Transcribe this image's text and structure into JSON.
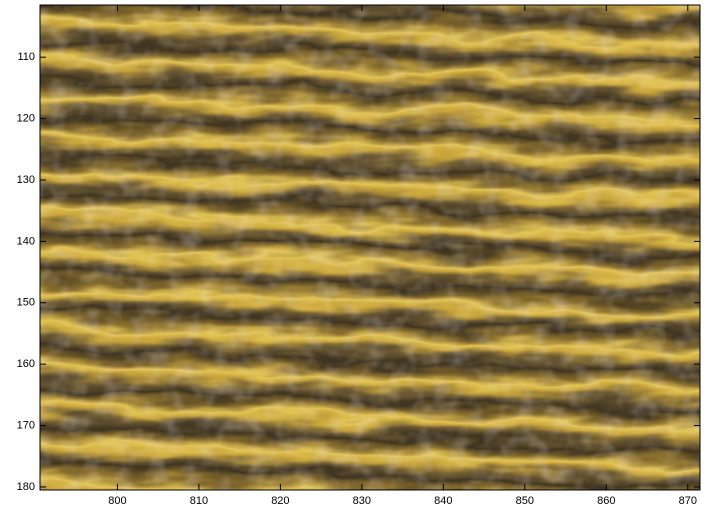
{
  "chart_data": {
    "type": "image",
    "xlim": [
      790.5,
      871.5
    ],
    "ylim": [
      101.5,
      180.5
    ],
    "y_reversed": true,
    "xticks": [
      800,
      810,
      820,
      830,
      840,
      850,
      860,
      870
    ],
    "yticks": [
      110,
      120,
      130,
      140,
      150,
      160,
      170,
      180
    ],
    "ticks_inside": true,
    "box": true
  }
}
